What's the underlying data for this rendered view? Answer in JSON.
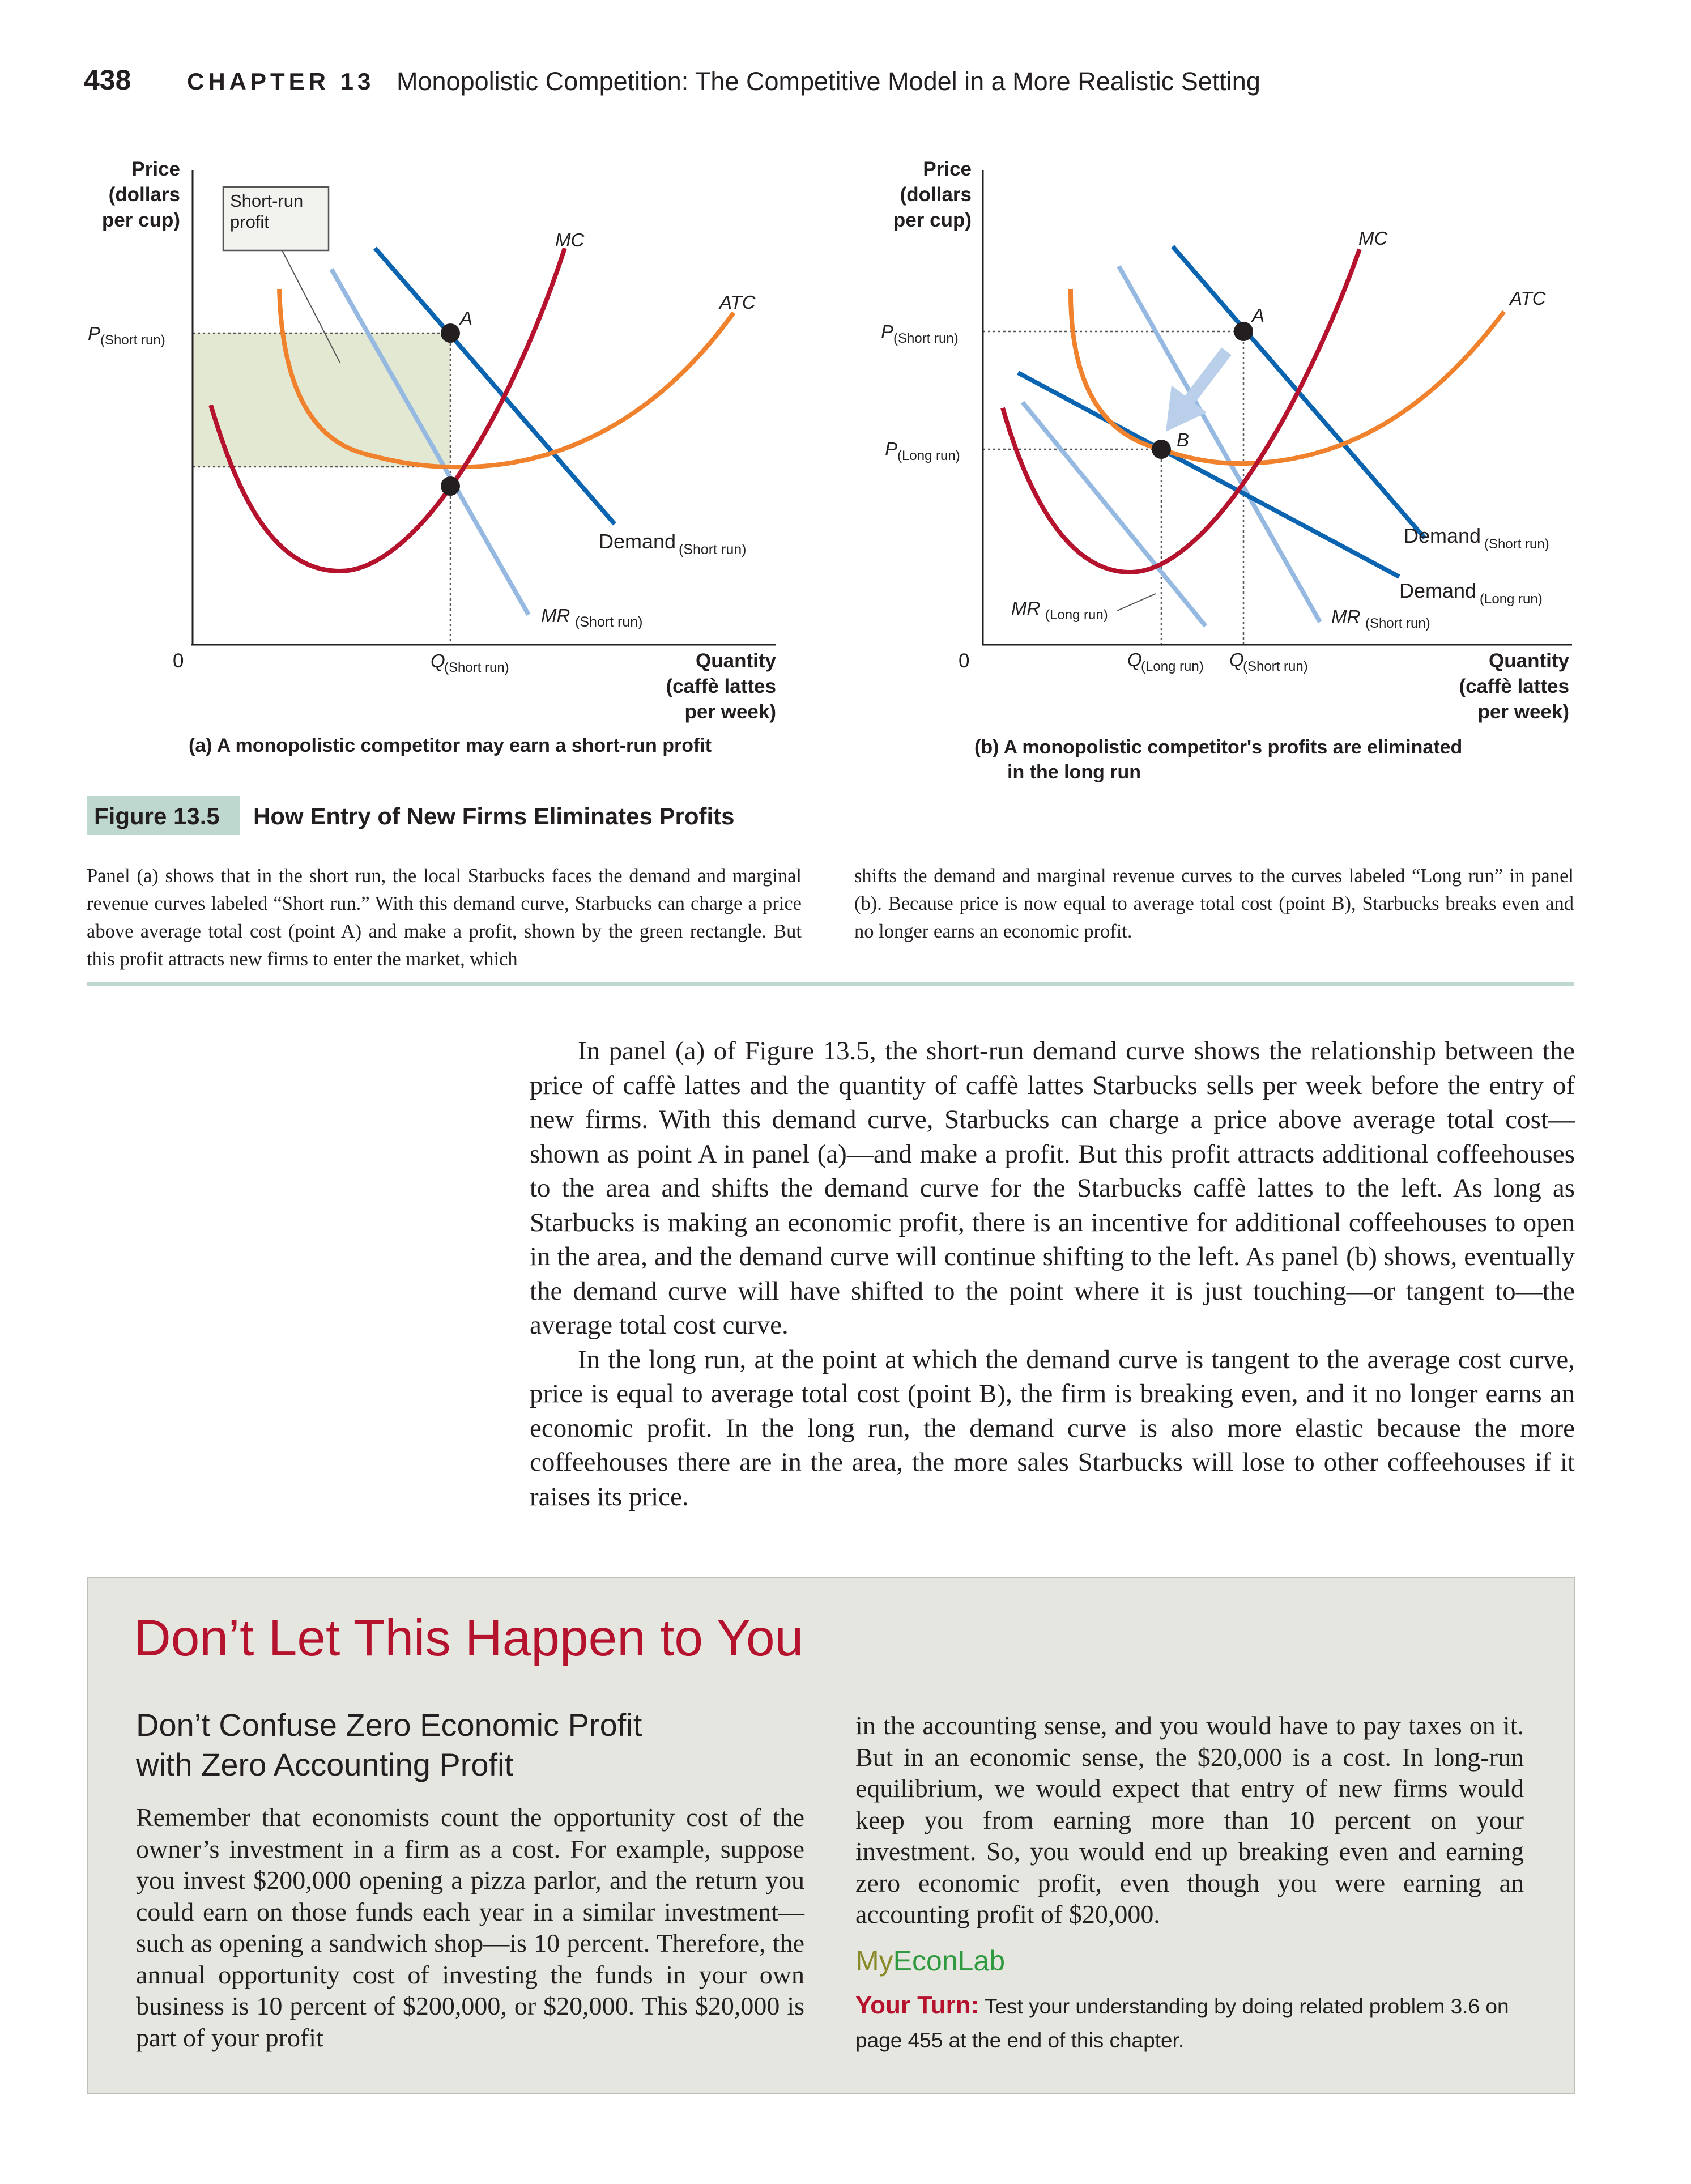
{
  "header": {
    "page_number": "438",
    "chapter_label": "CHAPTER 13",
    "chapter_title": "Monopolistic Competition: The Competitive Model in a More Realistic Setting"
  },
  "figure": {
    "number": "Figure 13.5",
    "title": "How Entry of New Firms Eliminates Profits",
    "panel_a": {
      "y_axis_label": [
        "Price",
        "(dollars",
        "per cup)"
      ],
      "x_axis_label": [
        "Quantity",
        "(caffè lattes",
        "per week)"
      ],
      "origin": "0",
      "profit_box": [
        "Short-run",
        "profit"
      ],
      "p_label": "P",
      "p_sub": "(Short run)",
      "q_label": "Q",
      "q_sub": "(Short run)",
      "mc": "MC",
      "atc": "ATC",
      "point_a": "A",
      "demand": "Demand",
      "demand_sub": "(Short run)",
      "mr": "MR",
      "mr_sub": "(Short run)",
      "caption": "(a) A monopolistic competitor may earn a short-run profit"
    },
    "panel_b": {
      "y_axis_label": [
        "Price",
        "(dollars",
        "per cup)"
      ],
      "x_axis_label": [
        "Quantity",
        "(caffè lattes",
        "per week)"
      ],
      "origin": "0",
      "p_short_label": "P",
      "p_short_sub": "(Short run)",
      "p_long_label": "P",
      "p_long_sub": "(Long run)",
      "q_long_label": "Q",
      "q_long_sub": "(Long run)",
      "q_short_label": "Q",
      "q_short_sub": "(Short run)",
      "mc": "MC",
      "atc": "ATC",
      "point_a": "A",
      "point_b": "B",
      "demand_short": "Demand",
      "demand_short_sub": "(Short run)",
      "demand_long": "Demand",
      "demand_long_sub": "(Long run)",
      "mr_long": "MR",
      "mr_long_sub": "(Long run)",
      "mr_short": "MR",
      "mr_short_sub": "(Short run)",
      "caption_line1": "(b) A monopolistic competitor's profits are eliminated",
      "caption_line2": "in the long run"
    },
    "caption_left": "Panel (a) shows that in the short run, the local Starbucks faces the demand and marginal revenue curves labeled “Short run.” With this demand curve, Starbucks can charge a price above average total cost (point A) and make a profit, shown by the green rectangle. But this profit attracts new firms to enter the market, which",
    "caption_right": "shifts the demand and marginal revenue curves to the curves labeled “Long run” in panel (b). Because price is now equal to average total cost (point B), Starbucks breaks even and no longer earns an economic profit."
  },
  "body": {
    "para1": "In panel (a) of Figure 13.5, the short-run demand curve shows the relationship between the price of caffè lattes and the quantity of caffè lattes Starbucks sells per week before the entry of new firms. With this demand curve, Starbucks can charge a price above average total cost—shown as point A in panel (a)—and make a profit. But this profit attracts additional coffeehouses to the area and shifts the demand curve for the Starbucks caffè lattes to the left. As long as Starbucks is making an economic profit, there is an incentive for additional coffeehouses to open in the area, and the demand curve will continue shifting to the left. As panel (b) shows, eventually the demand curve will have shifted to the point where it is just touching—or tangent to—the average total cost curve.",
    "para2": "In the long run, at the point at which the demand curve is tangent to the average cost curve, price is equal to average total cost (point B), the firm is breaking even, and it no longer earns an economic profit. In the long run, the demand curve is also more elastic because the more coffeehouses there are in the area, the more sales Starbucks will lose to other coffeehouses if it raises its price."
  },
  "box": {
    "heading": "Don’t Let This Happen to You",
    "subheading_line1": "Don’t Confuse Zero Economic Profit",
    "subheading_line2": "with Zero Accounting Profit",
    "left_text": "Remember that economists count the opportunity cost of the owner’s investment in a firm as a cost. For example, suppose you invest $200,000 opening a pizza parlor, and the return you could earn on those funds each year in a similar investment—such as opening a sandwich shop—is 10 percent. Therefore, the annual opportunity cost of investing the funds in your own business is 10 percent of $200,000, or $20,000. This $20,000 is part of your profit",
    "right_text": "in the accounting sense, and you would have to pay taxes on it. But in an economic sense, the $20,000 is a cost. In long-run equilibrium, we would expect that entry of new firms would keep you from earning more than 10 percent on your investment. So, you would end up breaking even and earning zero economic profit, even though you were earning an accounting profit of $20,000.",
    "lab_my": "My",
    "lab_econ": "EconLab",
    "your_turn_label": "Your Turn:",
    "your_turn_text": "Test your understanding by doing related problem 3.6 on page 455 at the end of this chapter."
  },
  "colors": {
    "mc": "#b5122e",
    "atc": "#f0812d",
    "demand": "#0b64b0",
    "mr": "#95b9e0",
    "profit_fill": "#e3e8d2",
    "accent_green": "#bed7cf",
    "box_heading": "#b5122e"
  }
}
